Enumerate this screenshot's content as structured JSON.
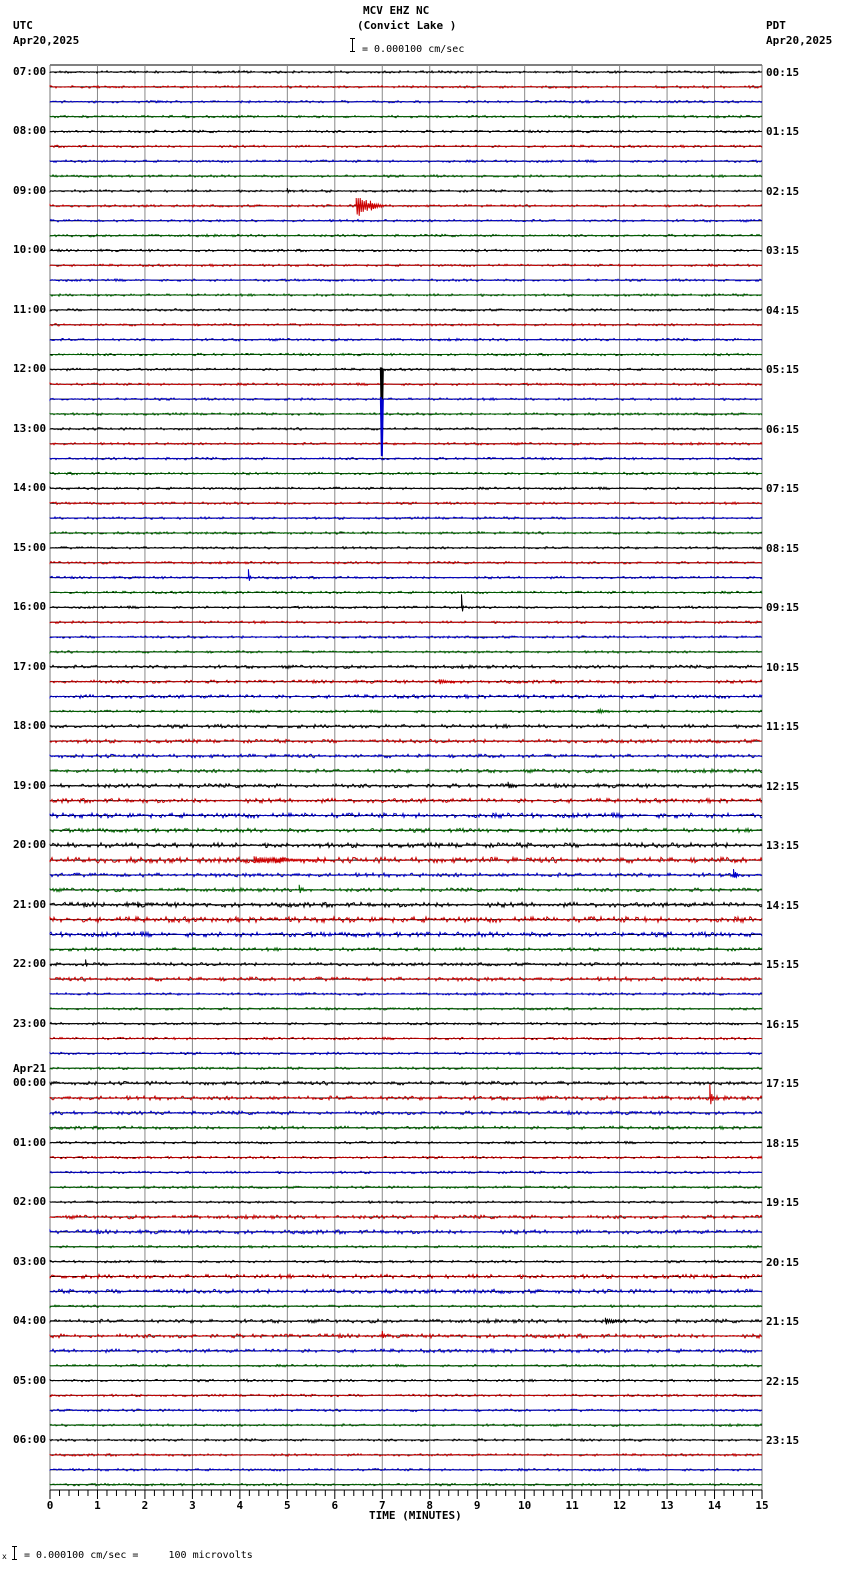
{
  "header": {
    "station": "MCV EHZ NC",
    "location": "(Convict Lake )",
    "scale_text": "= 0.000100 cm/sec",
    "left_tz": "UTC",
    "left_date": "Apr20,2025",
    "right_tz": "PDT",
    "right_date": "Apr20,2025"
  },
  "footer": {
    "scale_prefix": "x",
    "scale_text": "= 0.000100 cm/sec =     100 microvolts"
  },
  "colors": {
    "trace_cycle": [
      "#000000",
      "#cc0000",
      "#0000cc",
      "#006600"
    ],
    "grid": "#888888",
    "axis": "#000000"
  },
  "chart_data": {
    "type": "line",
    "title": "MCV EHZ NC (Convict Lake )",
    "subtitle": "1 unit = 0.000100 cm/sec = 100 microvolts",
    "xlabel": "TIME (MINUTES)",
    "ylabel": "",
    "xlim": [
      0,
      15
    ],
    "x_ticks": [
      "0",
      "1",
      "2",
      "3",
      "4",
      "5",
      "6",
      "7",
      "8",
      "9",
      "10",
      "11",
      "12",
      "13",
      "14",
      "15"
    ],
    "grid": true,
    "traces_per_hour": 4,
    "trace_minutes": 15,
    "left_hour_labels": [
      {
        "row": 0,
        "label": "07:00"
      },
      {
        "row": 4,
        "label": "08:00"
      },
      {
        "row": 8,
        "label": "09:00"
      },
      {
        "row": 12,
        "label": "10:00"
      },
      {
        "row": 16,
        "label": "11:00"
      },
      {
        "row": 20,
        "label": "12:00"
      },
      {
        "row": 24,
        "label": "13:00"
      },
      {
        "row": 28,
        "label": "14:00"
      },
      {
        "row": 32,
        "label": "15:00"
      },
      {
        "row": 36,
        "label": "16:00"
      },
      {
        "row": 40,
        "label": "17:00"
      },
      {
        "row": 44,
        "label": "18:00"
      },
      {
        "row": 48,
        "label": "19:00"
      },
      {
        "row": 52,
        "label": "20:00"
      },
      {
        "row": 56,
        "label": "21:00"
      },
      {
        "row": 60,
        "label": "22:00"
      },
      {
        "row": 64,
        "label": "23:00"
      },
      {
        "row": 68,
        "label": "00:00",
        "date": "Apr21"
      },
      {
        "row": 72,
        "label": "01:00"
      },
      {
        "row": 76,
        "label": "02:00"
      },
      {
        "row": 80,
        "label": "03:00"
      },
      {
        "row": 84,
        "label": "04:00"
      },
      {
        "row": 88,
        "label": "05:00"
      },
      {
        "row": 92,
        "label": "06:00"
      }
    ],
    "right_hour_labels": [
      "00:15",
      "01:15",
      "02:15",
      "03:15",
      "04:15",
      "05:15",
      "06:15",
      "07:15",
      "08:15",
      "09:15",
      "10:15",
      "11:15",
      "12:15",
      "13:15",
      "14:15",
      "15:15",
      "16:15",
      "17:15",
      "18:15",
      "19:15",
      "20:15",
      "21:15",
      "22:15",
      "23:15"
    ],
    "row_count": 96,
    "noise_levels": {
      "default": 1.2,
      "rows": {
        "40": 1.6,
        "41": 1.6,
        "42": 1.8,
        "44": 1.8,
        "45": 1.8,
        "46": 1.8,
        "47": 1.8,
        "48": 2.0,
        "49": 2.2,
        "50": 2.4,
        "51": 2.0,
        "52": 2.4,
        "53": 2.8,
        "54": 2.0,
        "55": 1.8,
        "56": 2.4,
        "57": 2.8,
        "58": 2.4,
        "59": 1.6,
        "60": 1.6,
        "61": 2.0,
        "68": 1.8,
        "69": 2.0,
        "70": 1.8,
        "71": 1.6,
        "77": 1.8,
        "78": 2.0,
        "81": 2.0,
        "82": 2.0,
        "84": 1.8,
        "85": 2.0,
        "86": 1.8
      }
    },
    "events": [
      {
        "row": 8,
        "minute": 5.0,
        "amp": 4,
        "len": 0.1
      },
      {
        "row": 9,
        "minute": 6.45,
        "amp": 14,
        "len": 0.6
      },
      {
        "row": 9,
        "minute": 6.75,
        "amp": 6,
        "len": 0.25
      },
      {
        "row": 20,
        "minute": 6.97,
        "amp": 30,
        "len": 0.05,
        "dir": "down"
      },
      {
        "row": 22,
        "minute": 6.97,
        "amp": 30,
        "len": 0.05,
        "dir": "down"
      },
      {
        "row": 34,
        "minute": 4.18,
        "amp": 12,
        "len": 0.08
      },
      {
        "row": 36,
        "minute": 8.67,
        "amp": 16,
        "len": 0.05
      },
      {
        "row": 41,
        "minute": 8.2,
        "amp": 3,
        "len": 0.5
      },
      {
        "row": 43,
        "minute": 11.55,
        "amp": 3,
        "len": 0.3
      },
      {
        "row": 48,
        "minute": 9.65,
        "amp": 6,
        "len": 0.2
      },
      {
        "row": 53,
        "minute": 4.3,
        "amp": 4,
        "len": 1.6
      },
      {
        "row": 54,
        "minute": 14.4,
        "amp": 7,
        "len": 0.15
      },
      {
        "row": 55,
        "minute": 5.25,
        "amp": 9,
        "len": 0.08
      },
      {
        "row": 56,
        "minute": 1.85,
        "amp": 4,
        "len": 0.1
      },
      {
        "row": 60,
        "minute": 0.75,
        "amp": 8,
        "len": 0.05
      },
      {
        "row": 69,
        "minute": 13.9,
        "amp": 16,
        "len": 0.1
      },
      {
        "row": 85,
        "minute": 7.0,
        "amp": 6,
        "len": 0.1
      },
      {
        "row": 84,
        "minute": 11.7,
        "amp": 4,
        "len": 0.5
      }
    ]
  }
}
